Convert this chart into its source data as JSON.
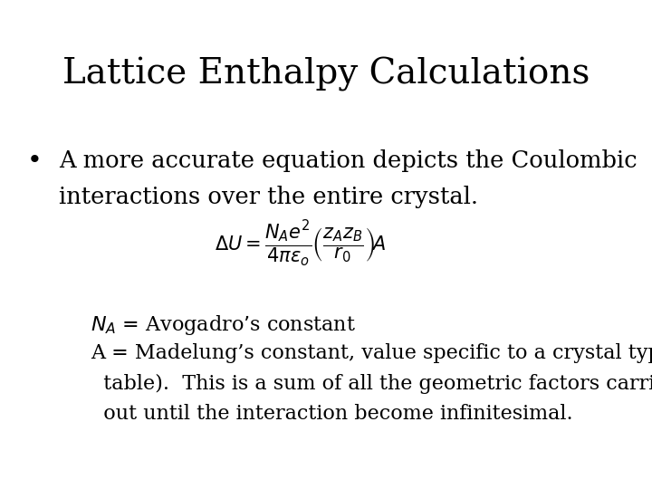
{
  "title": "Lattice Enthalpy Calculations",
  "title_fontsize": 28,
  "bullet_text_line1": "A more accurate equation depicts the Coulombic",
  "bullet_text_line2": "interactions over the entire crystal.",
  "bullet_fontsize": 18.5,
  "equation": "$\\Delta U = \\dfrac{N_A e^2}{4\\pi\\varepsilon_o}\\left(\\dfrac{z_A z_B}{r_0}\\right)\\!A$",
  "equation_fontsize": 15,
  "na_line": "$N_A$ = Avogadro’s constant",
  "na_fontsize": 16,
  "a_line1": "A = Madelung’s constant, value specific to a crystal type (in",
  "a_line2": "  table).  This is a sum of all the geometric factors carried",
  "a_line3": "  out until the interaction become infinitesimal.",
  "a_fontsize": 16,
  "background_color": "#ffffff",
  "text_color": "#000000",
  "font_family": "serif"
}
